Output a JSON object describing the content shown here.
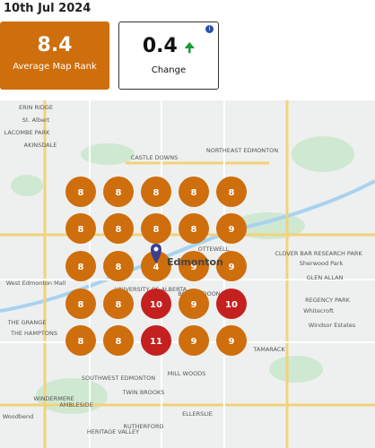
{
  "header": {
    "date": "10th Jul 2024"
  },
  "cards": [
    {
      "value": "8.4",
      "label": "Average Map Rank"
    },
    {
      "value": "0.4",
      "label": "Change",
      "icon": "i"
    }
  ],
  "map": {
    "pin_label": "Edmonton",
    "grid": [
      [
        {
          "value": 8,
          "color": "#cf6e0c"
        },
        {
          "value": 8,
          "color": "#cf6e0c"
        },
        {
          "value": 8,
          "color": "#cf6e0c"
        },
        {
          "value": 8,
          "color": "#cf6e0c"
        },
        {
          "value": 8,
          "color": "#cf6e0c"
        }
      ],
      [
        {
          "value": 8,
          "color": "#cf6e0c"
        },
        {
          "value": 8,
          "color": "#cf6e0c"
        },
        {
          "value": 8,
          "color": "#cf6e0c"
        },
        {
          "value": 8,
          "color": "#cf6e0c"
        },
        {
          "value": 9,
          "color": "#cf6e0c"
        }
      ],
      [
        {
          "value": 8,
          "color": "#cf6e0c"
        },
        {
          "value": 8,
          "color": "#cf6e0c"
        },
        {
          "value": 4,
          "color": "#cf6e0c"
        },
        {
          "value": 9,
          "color": "#cf6e0c"
        },
        {
          "value": 9,
          "color": "#cf6e0c"
        }
      ],
      [
        {
          "value": 8,
          "color": "#cf6e0c"
        },
        {
          "value": 8,
          "color": "#cf6e0c"
        },
        {
          "value": 10,
          "color": "#c42020"
        },
        {
          "value": 9,
          "color": "#cf6e0c"
        },
        {
          "value": 10,
          "color": "#c42020"
        }
      ],
      [
        {
          "value": 8,
          "color": "#cf6e0c"
        },
        {
          "value": 8,
          "color": "#cf6e0c"
        },
        {
          "value": 11,
          "color": "#c42020"
        },
        {
          "value": 9,
          "color": "#cf6e0c"
        },
        {
          "value": 9,
          "color": "#cf6e0c"
        }
      ]
    ],
    "labels": [
      "ERIN RIDGE",
      "St. Albert",
      "LACOMBE PARK",
      "AKINSDALE",
      "CASTLE DOWNS",
      "NORTHEAST EDMONTON",
      "West Edmonton Mall",
      "UNIVERSITY OF ALBERTA",
      "BONNIE DOON",
      "OTTEWELL",
      "CLOVER BAR RESEARCH PARK",
      "Sherwood Park",
      "GLEN ALLAN",
      "REGENCY PARK",
      "Whitecroft",
      "Windsor Estates",
      "TAMARACK",
      "THE GRANGE",
      "THE HAMPTONS",
      "SOUTHWEST EDMONTON",
      "MILL WOODS",
      "TWIN BROOKS",
      "WINDERMERE",
      "AMBLESIDE",
      "Woodbend",
      "RUTHERFORD",
      "ELLERSLIE",
      "HERITAGE VALLEY"
    ]
  }
}
